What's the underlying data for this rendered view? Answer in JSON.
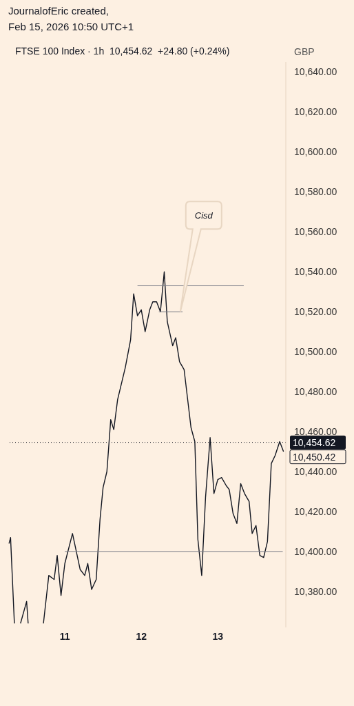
{
  "chart_data": {
    "type": "line",
    "title": "FTSE 100 Index · 1h  10,454.62  +24.80 (+0.24%)",
    "subtitle": "JournalofEric created,\nFeb 15, 2026 10:50 UTC+1",
    "ylabel": "GBP",
    "xlim": [
      10.26,
      13.89
    ],
    "xticks": [
      11,
      12,
      13
    ],
    "ylim": [
      10362,
      10645
    ],
    "yticks": [
      {
        "value": 10380,
        "label": "10,380.00"
      },
      {
        "value": 10400,
        "label": "10,400.00"
      },
      {
        "value": 10420,
        "label": "10,420.00"
      },
      {
        "value": 10440,
        "label": "10,440.00"
      },
      {
        "value": 10460,
        "label": "10,460.00"
      },
      {
        "value": 10480,
        "label": "10,480.00"
      },
      {
        "value": 10500,
        "label": "10,500.00"
      },
      {
        "value": 10520,
        "label": "10,520.00"
      },
      {
        "value": 10540,
        "label": "10,540.00"
      },
      {
        "value": 10560,
        "label": "10,560.00"
      },
      {
        "value": 10580,
        "label": "10,580.00"
      },
      {
        "value": 10600,
        "label": "10,600.00"
      },
      {
        "value": 10620,
        "label": "10,620.00"
      },
      {
        "value": 10640,
        "label": "10,640.00"
      }
    ],
    "marker": "none",
    "line_style": "solid",
    "series": [
      {
        "color": "#131722",
        "x": [
          10.27,
          10.29,
          10.34,
          10.38,
          10.42,
          10.5,
          10.52,
          10.58,
          10.72,
          10.79,
          10.86,
          10.9,
          10.95,
          11.0,
          11.1,
          11.2,
          11.26,
          11.3,
          11.35,
          11.41,
          11.46,
          11.5,
          11.55,
          11.6,
          11.64,
          11.69,
          11.79,
          11.86,
          11.9,
          11.95,
          12.0,
          12.05,
          12.11,
          12.15,
          12.2,
          12.25,
          12.3,
          12.34,
          12.41,
          12.45,
          12.5,
          12.56,
          12.65,
          12.7,
          12.74,
          12.79,
          12.84,
          12.9,
          12.95,
          13.0,
          13.05,
          13.11,
          13.15,
          13.2,
          13.25,
          13.3,
          13.35,
          13.41,
          13.45,
          13.5,
          13.55,
          13.6,
          13.65,
          13.7,
          13.75,
          13.81,
          13.86
        ],
        "values": [
          10404,
          10407,
          10364,
          null,
          10364,
          10375,
          10364,
          null,
          10364,
          10388,
          10386,
          10398,
          10378,
          10394,
          10409,
          10391,
          10388,
          10394,
          10381,
          10386,
          10416,
          10432,
          10440,
          10466,
          10461,
          10476,
          10492,
          10506,
          10529,
          10518,
          10521,
          10510,
          10521,
          10525,
          10525,
          10520,
          10540,
          10515,
          10503,
          10507,
          10495,
          10491,
          10462,
          10455,
          10406,
          10388,
          10427,
          10457,
          10429,
          10436,
          10437,
          10433,
          10431,
          10419,
          10414,
          10434,
          10429,
          10425,
          10409,
          10413,
          10398,
          10397,
          10405,
          10444,
          10448,
          10455,
          10450
        ]
      },
      {
        "color": "#787b86",
        "x": [
          11.0,
          13.85
        ],
        "values": [
          10400,
          10400
        ]
      },
      {
        "color": "#787b86",
        "x": [
          11.95,
          13.34
        ],
        "values": [
          10533,
          10533
        ]
      },
      {
        "color": "#787b86",
        "x": [
          12.23,
          12.54
        ],
        "values": [
          10520,
          10520
        ]
      }
    ],
    "ref_lines": [
      {
        "axis": "y",
        "value": 10454.62,
        "label": "10,454.62",
        "color": "#131722",
        "line_style": "dotted"
      }
    ],
    "annotations": [
      "Cisd",
      "10,450.42"
    ]
  }
}
